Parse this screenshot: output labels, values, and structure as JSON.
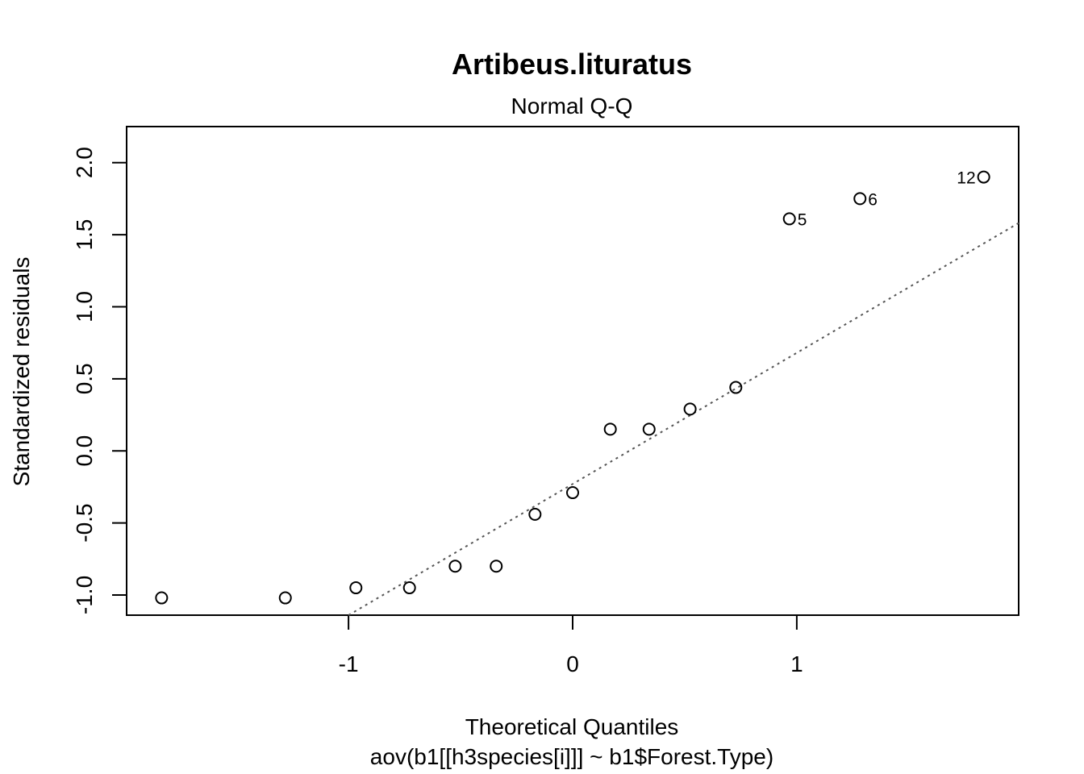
{
  "chart_data": {
    "type": "scatter",
    "title": "Artibeus.lituratus",
    "subtitle": "Normal Q-Q",
    "xlabel": "Theoretical Quantiles",
    "xsublabel": "aov(b1[[h3species[i]]] ~ b1$Forest.Type)",
    "ylabel": "Standardized residuals",
    "xlim": [
      -1.99,
      1.99
    ],
    "ylim": [
      -1.14,
      2.25
    ],
    "x_ticks": [
      -1,
      0,
      1
    ],
    "y_ticks": [
      -1.0,
      -0.5,
      0.0,
      0.5,
      1.0,
      1.5,
      2.0
    ],
    "x_tick_labels": [
      "-1",
      "0",
      "1"
    ],
    "y_tick_labels": [
      "-1.0",
      "-0.5",
      "0.0",
      "0.5",
      "1.0",
      "1.5",
      "2.0"
    ],
    "grid": false,
    "points": [
      {
        "x": -1.834,
        "y": -1.02,
        "label": ""
      },
      {
        "x": -1.282,
        "y": -1.02,
        "label": ""
      },
      {
        "x": -0.967,
        "y": -0.95,
        "label": ""
      },
      {
        "x": -0.728,
        "y": -0.95,
        "label": ""
      },
      {
        "x": -0.524,
        "y": -0.8,
        "label": ""
      },
      {
        "x": -0.341,
        "y": -0.8,
        "label": ""
      },
      {
        "x": -0.168,
        "y": -0.44,
        "label": ""
      },
      {
        "x": 0.0,
        "y": -0.29,
        "label": ""
      },
      {
        "x": 0.168,
        "y": 0.15,
        "label": ""
      },
      {
        "x": 0.341,
        "y": 0.15,
        "label": ""
      },
      {
        "x": 0.524,
        "y": 0.29,
        "label": ""
      },
      {
        "x": 0.728,
        "y": 0.44,
        "label": ""
      },
      {
        "x": 0.967,
        "y": 1.61,
        "label": "5"
      },
      {
        "x": 1.282,
        "y": 1.75,
        "label": "6"
      },
      {
        "x": 1.834,
        "y": 1.9,
        "label": "12"
      }
    ],
    "reference_line": {
      "intercept": -0.23,
      "slope": 0.91
    }
  }
}
